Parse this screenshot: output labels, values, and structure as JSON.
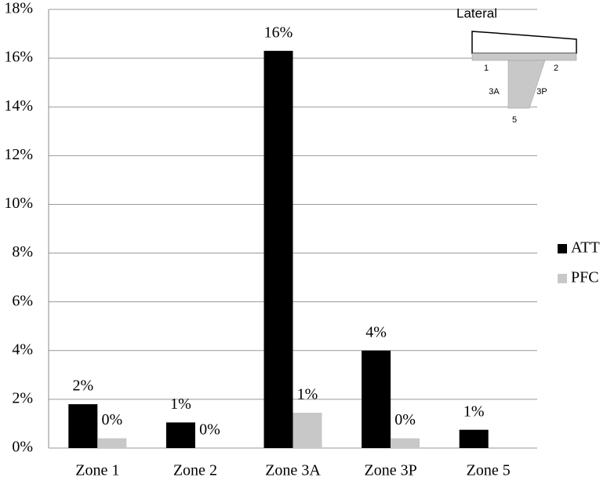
{
  "chart_data": {
    "type": "bar",
    "categories": [
      "Zone 1",
      "Zone 2",
      "Zone 3A",
      "Zone 3P",
      "Zone 5"
    ],
    "series": [
      {
        "name": "ATT",
        "color": "#000000",
        "values": [
          1.8,
          1.05,
          16.3,
          4.0,
          0.75
        ],
        "value_labels": [
          "2%",
          "1%",
          "16%",
          "4%",
          "1%"
        ]
      },
      {
        "name": "PFC",
        "color": "#c8c8c8",
        "values": [
          0.4,
          0,
          1.45,
          0.4,
          null
        ],
        "value_labels": [
          "0%",
          "0%",
          "1%",
          "0%",
          null
        ]
      }
    ],
    "ylim": [
      0,
      18
    ],
    "yticks": [
      {
        "value": 0,
        "label": "0%"
      },
      {
        "value": 2,
        "label": "2%"
      },
      {
        "value": 4,
        "label": "4%"
      },
      {
        "value": 6,
        "label": "6%"
      },
      {
        "value": 8,
        "label": "8%"
      },
      {
        "value": 10,
        "label": "10%"
      },
      {
        "value": 12,
        "label": "12%"
      },
      {
        "value": 14,
        "label": "14%"
      },
      {
        "value": 16,
        "label": "16%"
      },
      {
        "value": 18,
        "label": "18%"
      }
    ],
    "grid": true,
    "legend": "right",
    "inset": {
      "title": "Lateral",
      "labels": [
        "1",
        "2",
        "3A",
        "3P",
        "5"
      ]
    }
  }
}
